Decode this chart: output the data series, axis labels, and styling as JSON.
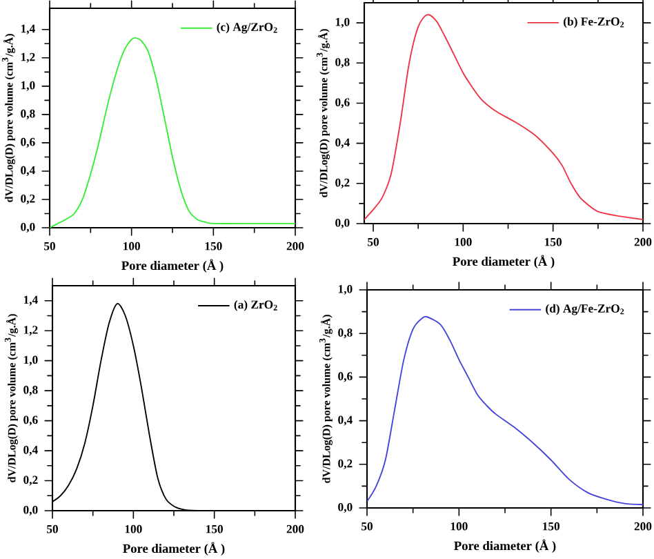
{
  "chart_data": [
    {
      "type": "line",
      "xlabel": "Pore diameter (Å )",
      "ylabel": "dV/DLog(D) pore volume (cm$^{3}$/g.Å)",
      "xlim": [
        50,
        200
      ],
      "ylim": [
        0,
        1.55
      ],
      "xticks": [
        50,
        100,
        150,
        200
      ],
      "yticks": [
        {
          "value": 0,
          "label": "0,0"
        },
        {
          "value": 0.2,
          "label": "0,2"
        },
        {
          "value": 0.4,
          "label": "0,4"
        },
        {
          "value": 0.6,
          "label": "0,6"
        },
        {
          "value": 0.8,
          "label": "0,8"
        },
        {
          "value": 1.0,
          "label": "1,0"
        },
        {
          "value": 1.2,
          "label": "1,2"
        },
        {
          "value": 1.4,
          "label": "1,4"
        }
      ],
      "legend": "top right",
      "x": [
        50,
        55,
        60,
        65,
        70,
        75,
        80,
        85,
        90,
        95,
        100,
        103,
        106,
        110,
        115,
        120,
        125,
        130,
        135,
        140,
        145,
        150,
        175,
        200
      ],
      "series": [
        {
          "name": "(c) Ag/ZrO$_{2}$",
          "color": "#33ee33",
          "values": [
            0.0,
            0.03,
            0.06,
            0.1,
            0.2,
            0.38,
            0.6,
            0.85,
            1.07,
            1.24,
            1.33,
            1.34,
            1.32,
            1.25,
            1.05,
            0.78,
            0.5,
            0.27,
            0.12,
            0.06,
            0.04,
            0.03,
            0.03,
            0.03
          ]
        }
      ]
    },
    {
      "type": "line",
      "xlabel": "Pore diameter (Å )",
      "ylabel": "dV/DLog(D) pore volume (cm$^{3}$/g.Å)",
      "xlim": [
        45,
        200
      ],
      "ylim": [
        0,
        1.1
      ],
      "xticks": [
        50,
        100,
        150,
        200
      ],
      "yticks": [
        {
          "value": 0,
          "label": "0,0"
        },
        {
          "value": 0.2,
          "label": "0,2"
        },
        {
          "value": 0.4,
          "label": "0,4"
        },
        {
          "value": 0.6,
          "label": "0,6"
        },
        {
          "value": 0.8,
          "label": "0,8"
        },
        {
          "value": 1.0,
          "label": "1,0"
        }
      ],
      "legend": "top right",
      "x": [
        45,
        50,
        55,
        60,
        65,
        70,
        75,
        80,
        85,
        90,
        95,
        100,
        105,
        110,
        115,
        120,
        130,
        140,
        150,
        155,
        160,
        165,
        170,
        175,
        185,
        200
      ],
      "series": [
        {
          "name": "(b) Fe-ZrO$_{2}$",
          "color": "#ee3344",
          "values": [
            0.02,
            0.07,
            0.13,
            0.25,
            0.5,
            0.8,
            0.98,
            1.04,
            1.01,
            0.93,
            0.84,
            0.75,
            0.68,
            0.62,
            0.58,
            0.55,
            0.5,
            0.44,
            0.35,
            0.29,
            0.2,
            0.13,
            0.09,
            0.06,
            0.04,
            0.02
          ]
        }
      ]
    },
    {
      "type": "line",
      "xlabel": "Pore diameter (Å )",
      "ylabel": "dV/DLog(D) pore volume (cm$^{3}$/g.Å)",
      "xlim": [
        50,
        200
      ],
      "ylim": [
        0,
        1.5
      ],
      "xticks": [
        50,
        100,
        150,
        200
      ],
      "yticks": [
        {
          "value": 0,
          "label": "0,0"
        },
        {
          "value": 0.2,
          "label": "0,2"
        },
        {
          "value": 0.4,
          "label": "0,4"
        },
        {
          "value": 0.6,
          "label": "0,6"
        },
        {
          "value": 0.8,
          "label": "0,8"
        },
        {
          "value": 1.0,
          "label": "1,0"
        },
        {
          "value": 1.2,
          "label": "1,2"
        },
        {
          "value": 1.4,
          "label": "1,4"
        }
      ],
      "legend": "top right",
      "x": [
        50,
        55,
        60,
        65,
        70,
        75,
        80,
        85,
        90,
        95,
        100,
        105,
        110,
        115,
        120,
        125,
        130,
        140,
        200
      ],
      "series": [
        {
          "name": "(a) ZrO$_{2}$",
          "color": "#000000",
          "values": [
            0.06,
            0.1,
            0.17,
            0.28,
            0.45,
            0.7,
            1.0,
            1.25,
            1.38,
            1.3,
            1.1,
            0.82,
            0.5,
            0.22,
            0.08,
            0.03,
            0.01,
            0.0,
            0.0
          ]
        }
      ]
    },
    {
      "type": "line",
      "xlabel": "Pore diameter (Å )",
      "ylabel": "dV/DLog(D) pore volume (cm$^{3}$/g.Å)",
      "xlim": [
        50,
        200
      ],
      "ylim": [
        0,
        1.0
      ],
      "xticks": [
        50,
        100,
        150,
        200
      ],
      "yticks": [
        {
          "value": 0,
          "label": "0,0"
        },
        {
          "value": 0.2,
          "label": "0,2"
        },
        {
          "value": 0.4,
          "label": "0,4"
        },
        {
          "value": 0.6,
          "label": "0,6"
        },
        {
          "value": 0.8,
          "label": "0,8"
        },
        {
          "value": 1.0,
          "label": "1,0"
        }
      ],
      "legend": "top right",
      "x": [
        50,
        55,
        60,
        65,
        70,
        75,
        80,
        83,
        90,
        95,
        100,
        105,
        110,
        115,
        120,
        130,
        140,
        150,
        160,
        170,
        180,
        190,
        200
      ],
      "series": [
        {
          "name": "(d) Ag/Fe-ZrO$_{2}$",
          "color": "#4444dd",
          "values": [
            0.03,
            0.1,
            0.22,
            0.45,
            0.68,
            0.82,
            0.87,
            0.875,
            0.84,
            0.77,
            0.68,
            0.6,
            0.52,
            0.47,
            0.43,
            0.37,
            0.3,
            0.22,
            0.13,
            0.07,
            0.04,
            0.02,
            0.015
          ]
        }
      ]
    }
  ]
}
